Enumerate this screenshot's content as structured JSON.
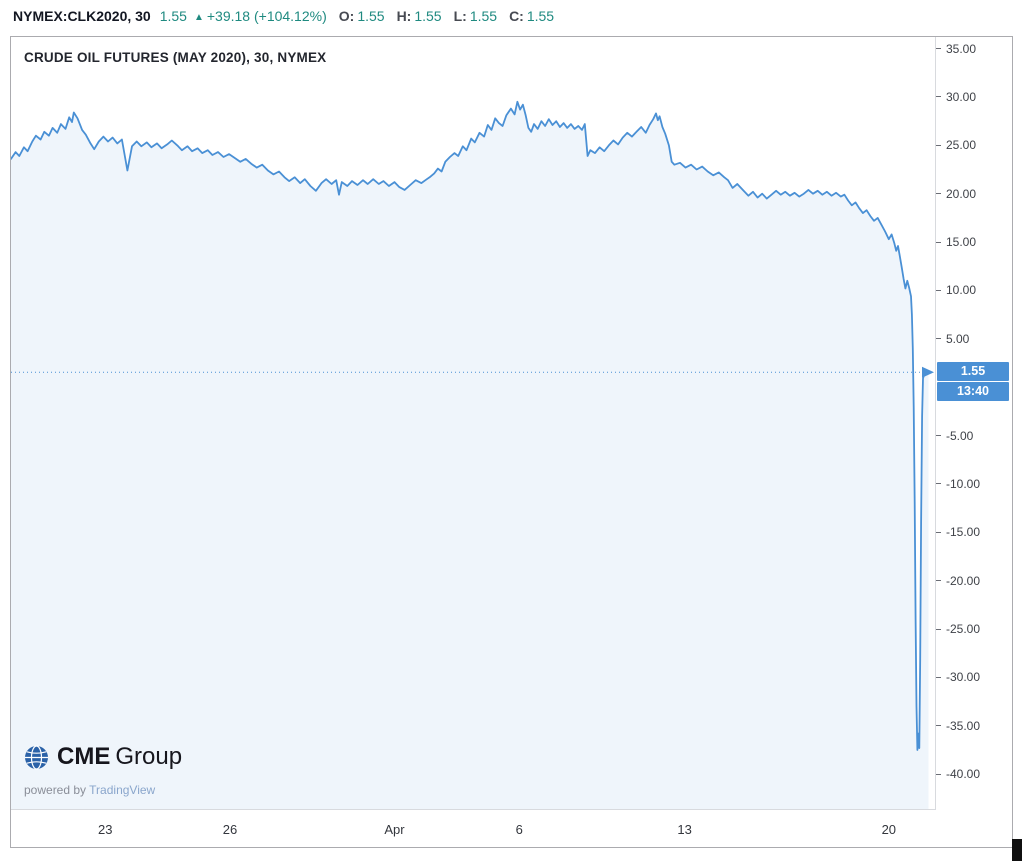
{
  "header": {
    "symbol_interval": "NYMEX:CLK2020, 30",
    "last": "1.55",
    "arrow": "▲",
    "change": "+39.18 (+104.12%)",
    "ohlc": [
      {
        "label": "O:",
        "value": "1.55"
      },
      {
        "label": "H:",
        "value": "1.55"
      },
      {
        "label": "L:",
        "value": "1.55"
      },
      {
        "label": "C:",
        "value": "1.55"
      }
    ]
  },
  "chart": {
    "title": "CRUDE OIL FUTURES (MAY 2020), 30, NYMEX"
  },
  "price_scale": {
    "last_price_label": "1.55",
    "countdown": "13:40"
  },
  "logo": {
    "cme_strong": "CME",
    "cme_light": "Group",
    "powered_by": "powered by",
    "tradingview": "TradingView"
  },
  "colors": {
    "line": "#4a90d5",
    "area_fill": "rgba(74,144,213,0.09)",
    "teal": "#1f8a80",
    "label_bg": "#4a90d5"
  },
  "chart_data": {
    "type": "line",
    "title": "CRUDE OIL FUTURES (MAY 2020), 30, NYMEX",
    "symbol": "NYMEX:CLK2020",
    "interval_minutes": 30,
    "last_price": 1.55,
    "change_abs": 39.18,
    "change_pct": 104.12,
    "open": 1.55,
    "high": 1.55,
    "low": 1.55,
    "close": 1.55,
    "countdown": "13:40",
    "ylim": [
      -43.6,
      36.2
    ],
    "y_ticks": [
      35,
      30,
      25,
      20,
      15,
      10,
      5,
      -5,
      -10,
      -15,
      -20,
      -25,
      -30,
      -35,
      -40
    ],
    "x_ticks": [
      {
        "label": "23",
        "pos": 0.102
      },
      {
        "label": "26",
        "pos": 0.237
      },
      {
        "label": "Apr",
        "pos": 0.415
      },
      {
        "label": "6",
        "pos": 0.55
      },
      {
        "label": "13",
        "pos": 0.729
      },
      {
        "label": "20",
        "pos": 0.95
      }
    ],
    "grid": "none",
    "legend_position": "none",
    "line_color": "#4a90d5",
    "area_fill": "rgba(74,144,213,0.09)",
    "x_unit": "normalized index 0-1000 across visible range",
    "points": [
      [
        0,
        23.6
      ],
      [
        5,
        24.3
      ],
      [
        9,
        23.9
      ],
      [
        14,
        24.8
      ],
      [
        18,
        24.4
      ],
      [
        23,
        25.4
      ],
      [
        27,
        26.0
      ],
      [
        32,
        25.6
      ],
      [
        36,
        26.4
      ],
      [
        41,
        26.0
      ],
      [
        45,
        26.8
      ],
      [
        50,
        26.3
      ],
      [
        54,
        27.2
      ],
      [
        59,
        26.7
      ],
      [
        63,
        27.9
      ],
      [
        66,
        27.4
      ],
      [
        68,
        28.4
      ],
      [
        72,
        27.8
      ],
      [
        77,
        26.6
      ],
      [
        81,
        26.1
      ],
      [
        86,
        25.2
      ],
      [
        90,
        24.6
      ],
      [
        95,
        25.4
      ],
      [
        100,
        25.9
      ],
      [
        105,
        25.4
      ],
      [
        110,
        25.8
      ],
      [
        115,
        25.2
      ],
      [
        120,
        25.6
      ],
      [
        126,
        22.4
      ],
      [
        131,
        24.9
      ],
      [
        136,
        25.4
      ],
      [
        141,
        24.9
      ],
      [
        147,
        25.3
      ],
      [
        152,
        24.8
      ],
      [
        158,
        25.2
      ],
      [
        163,
        24.7
      ],
      [
        169,
        25.1
      ],
      [
        174,
        25.5
      ],
      [
        180,
        25.0
      ],
      [
        185,
        24.5
      ],
      [
        191,
        24.9
      ],
      [
        196,
        24.4
      ],
      [
        202,
        24.7
      ],
      [
        207,
        24.2
      ],
      [
        213,
        24.5
      ],
      [
        218,
        24.0
      ],
      [
        224,
        24.3
      ],
      [
        230,
        23.8
      ],
      [
        236,
        24.1
      ],
      [
        242,
        23.7
      ],
      [
        248,
        23.3
      ],
      [
        254,
        23.6
      ],
      [
        260,
        23.1
      ],
      [
        266,
        22.7
      ],
      [
        272,
        23.0
      ],
      [
        278,
        22.4
      ],
      [
        284,
        22.0
      ],
      [
        290,
        22.3
      ],
      [
        296,
        21.7
      ],
      [
        301,
        21.3
      ],
      [
        307,
        21.7
      ],
      [
        313,
        21.1
      ],
      [
        318,
        21.5
      ],
      [
        324,
        20.8
      ],
      [
        330,
        20.3
      ],
      [
        336,
        21.1
      ],
      [
        341,
        21.5
      ],
      [
        347,
        21.0
      ],
      [
        352,
        21.4
      ],
      [
        355,
        19.9
      ],
      [
        358,
        21.2
      ],
      [
        364,
        20.8
      ],
      [
        369,
        21.3
      ],
      [
        375,
        20.9
      ],
      [
        381,
        21.4
      ],
      [
        386,
        21.0
      ],
      [
        392,
        21.5
      ],
      [
        398,
        21.0
      ],
      [
        403,
        21.3
      ],
      [
        409,
        20.8
      ],
      [
        415,
        21.2
      ],
      [
        420,
        20.7
      ],
      [
        426,
        20.4
      ],
      [
        432,
        20.9
      ],
      [
        438,
        21.4
      ],
      [
        444,
        21.1
      ],
      [
        450,
        21.5
      ],
      [
        453,
        21.7
      ],
      [
        458,
        22.1
      ],
      [
        462,
        22.6
      ],
      [
        466,
        22.3
      ],
      [
        470,
        23.3
      ],
      [
        475,
        23.8
      ],
      [
        480,
        24.2
      ],
      [
        484,
        23.9
      ],
      [
        489,
        24.9
      ],
      [
        493,
        24.5
      ],
      [
        498,
        25.7
      ],
      [
        502,
        25.3
      ],
      [
        507,
        26.3
      ],
      [
        512,
        25.9
      ],
      [
        516,
        27.1
      ],
      [
        520,
        26.6
      ],
      [
        524,
        27.8
      ],
      [
        528,
        27.3
      ],
      [
        532,
        27.0
      ],
      [
        536,
        28.1
      ],
      [
        541,
        28.8
      ],
      [
        545,
        28.2
      ],
      [
        548,
        29.5
      ],
      [
        551,
        28.7
      ],
      [
        554,
        29.2
      ],
      [
        557,
        28.1
      ],
      [
        560,
        26.8
      ],
      [
        563,
        26.4
      ],
      [
        566,
        27.2
      ],
      [
        570,
        26.7
      ],
      [
        574,
        27.5
      ],
      [
        578,
        27.0
      ],
      [
        582,
        27.7
      ],
      [
        586,
        27.1
      ],
      [
        590,
        27.5
      ],
      [
        594,
        26.9
      ],
      [
        598,
        27.3
      ],
      [
        602,
        26.8
      ],
      [
        606,
        27.2
      ],
      [
        610,
        26.7
      ],
      [
        614,
        27.0
      ],
      [
        618,
        26.6
      ],
      [
        621,
        27.2
      ],
      [
        624,
        23.9
      ],
      [
        627,
        24.5
      ],
      [
        632,
        24.2
      ],
      [
        637,
        24.8
      ],
      [
        642,
        24.4
      ],
      [
        647,
        25.0
      ],
      [
        652,
        25.5
      ],
      [
        657,
        25.1
      ],
      [
        662,
        25.8
      ],
      [
        667,
        26.3
      ],
      [
        672,
        25.9
      ],
      [
        677,
        26.4
      ],
      [
        682,
        26.9
      ],
      [
        687,
        26.3
      ],
      [
        691,
        27.1
      ],
      [
        695,
        27.7
      ],
      [
        698,
        28.3
      ],
      [
        700,
        27.6
      ],
      [
        702,
        28.0
      ],
      [
        705,
        26.9
      ],
      [
        708,
        26.2
      ],
      [
        712,
        25.0
      ],
      [
        715,
        23.3
      ],
      [
        718,
        23.0
      ],
      [
        724,
        23.2
      ],
      [
        730,
        22.7
      ],
      [
        736,
        23.0
      ],
      [
        742,
        22.5
      ],
      [
        748,
        22.8
      ],
      [
        754,
        22.3
      ],
      [
        760,
        21.9
      ],
      [
        766,
        22.2
      ],
      [
        772,
        21.7
      ],
      [
        776,
        21.4
      ],
      [
        781,
        20.6
      ],
      [
        786,
        21.0
      ],
      [
        792,
        20.4
      ],
      [
        798,
        19.8
      ],
      [
        803,
        20.2
      ],
      [
        808,
        19.6
      ],
      [
        813,
        20.0
      ],
      [
        818,
        19.5
      ],
      [
        823,
        19.9
      ],
      [
        828,
        20.3
      ],
      [
        833,
        19.9
      ],
      [
        838,
        20.2
      ],
      [
        843,
        19.8
      ],
      [
        848,
        20.1
      ],
      [
        853,
        19.7
      ],
      [
        858,
        20.0
      ],
      [
        863,
        20.4
      ],
      [
        868,
        20.0
      ],
      [
        873,
        20.3
      ],
      [
        878,
        19.9
      ],
      [
        883,
        20.2
      ],
      [
        888,
        19.8
      ],
      [
        893,
        20.1
      ],
      [
        898,
        19.7
      ],
      [
        902,
        19.9
      ],
      [
        906,
        19.3
      ],
      [
        910,
        18.8
      ],
      [
        914,
        19.1
      ],
      [
        918,
        18.5
      ],
      [
        922,
        18.0
      ],
      [
        926,
        18.3
      ],
      [
        930,
        17.7
      ],
      [
        934,
        17.2
      ],
      [
        938,
        17.5
      ],
      [
        942,
        16.8
      ],
      [
        946,
        16.1
      ],
      [
        950,
        15.3
      ],
      [
        953,
        15.8
      ],
      [
        956,
        14.9
      ],
      [
        958,
        14.1
      ],
      [
        960,
        14.6
      ],
      [
        962,
        13.5
      ],
      [
        964,
        12.4
      ],
      [
        966,
        11.2
      ],
      [
        968,
        10.2
      ],
      [
        970,
        11.0
      ],
      [
        972,
        10.3
      ],
      [
        974,
        9.4
      ],
      [
        975,
        7.5
      ],
      [
        976,
        4.0
      ],
      [
        977,
        -2.0
      ],
      [
        978,
        -12.0
      ],
      [
        979,
        -24.0
      ],
      [
        980,
        -33.0
      ],
      [
        981,
        -37.5
      ],
      [
        982,
        -35.8
      ],
      [
        983,
        -37.3
      ],
      [
        984,
        -28.0
      ],
      [
        985,
        -14.0
      ],
      [
        986,
        -3.0
      ],
      [
        987,
        0.9
      ],
      [
        989,
        1.55
      ],
      [
        993,
        1.55
      ]
    ]
  }
}
